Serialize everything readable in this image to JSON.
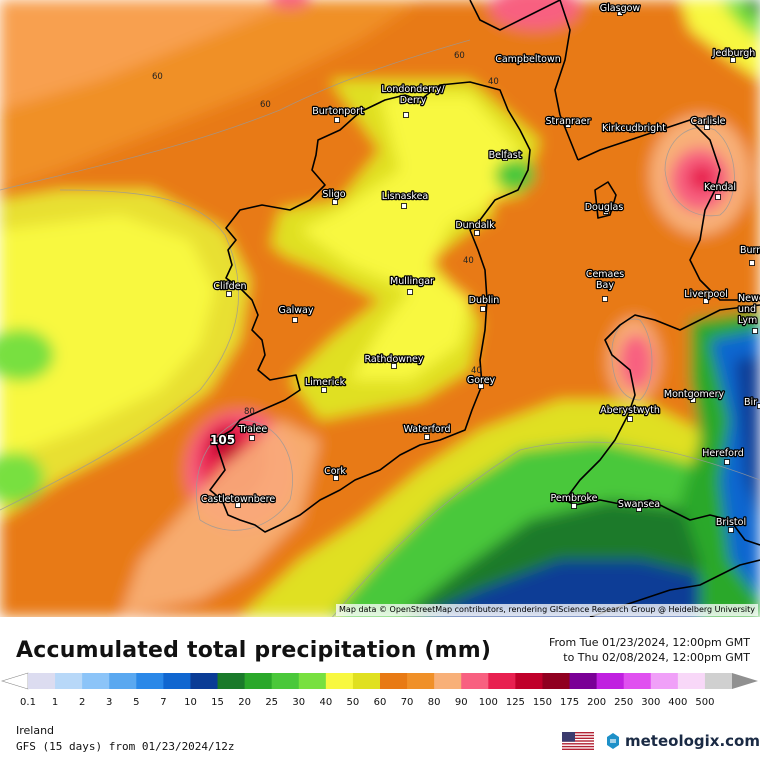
{
  "map": {
    "max_value_label": "105",
    "contour_labels": [
      "60",
      "60",
      "60",
      "40",
      "40",
      "40",
      "80"
    ],
    "cities": [
      {
        "name": "Glasgow"
      },
      {
        "name": "Jedburgh"
      },
      {
        "name": "Campbeltown"
      },
      {
        "name": "Burtonport"
      },
      {
        "name": "Londonderry/\nDerry"
      },
      {
        "name": "Stranraer"
      },
      {
        "name": "Kirkcudbright"
      },
      {
        "name": "Carlisle"
      },
      {
        "name": "Belfast"
      },
      {
        "name": "Kendal"
      },
      {
        "name": "Sligo"
      },
      {
        "name": "Lisnaskea"
      },
      {
        "name": "Douglas"
      },
      {
        "name": "Dundalk"
      },
      {
        "name": "Burn"
      },
      {
        "name": "Mullingar"
      },
      {
        "name": "Clifden"
      },
      {
        "name": "Dublin"
      },
      {
        "name": "Cemaes\nBay"
      },
      {
        "name": "Liverpool"
      },
      {
        "name": "Galway"
      },
      {
        "name": "Newca\nund\nLym"
      },
      {
        "name": "Rathdowney"
      },
      {
        "name": "Limerick"
      },
      {
        "name": "Gorey"
      },
      {
        "name": "Montgomery"
      },
      {
        "name": "Bir"
      },
      {
        "name": "Aberystwyth"
      },
      {
        "name": "Tralee"
      },
      {
        "name": "Waterford"
      },
      {
        "name": "Hereford"
      },
      {
        "name": "Cork"
      },
      {
        "name": "Castletownbere"
      },
      {
        "name": "Pembroke"
      },
      {
        "name": "Swansea"
      },
      {
        "name": "Bristol"
      }
    ],
    "attribution": "Map data © OpenStreetMap contributors, rendering GIScience Research Group @ Heidelberg University"
  },
  "header": {
    "title": "Accumulated total precipitation (mm)",
    "period_from": "From Tue 01/23/2024, 12:00pm GMT",
    "period_to": "to Thu 02/08/2024, 12:00pm GMT"
  },
  "legend": {
    "labels": [
      "0.1",
      "1",
      "2",
      "3",
      "5",
      "7",
      "10",
      "15",
      "20",
      "25",
      "30",
      "40",
      "50",
      "60",
      "70",
      "80",
      "90",
      "100",
      "125",
      "150",
      "175",
      "200",
      "250",
      "300",
      "400",
      "500"
    ],
    "colors": [
      "#dcdcf0",
      "#b8d8f8",
      "#8cc4f8",
      "#5aa8f0",
      "#2a88e8",
      "#1066d0",
      "#0a3c96",
      "#1a7a2a",
      "#2aa82a",
      "#4ac83a",
      "#78e040",
      "#f8f840",
      "#e0e020",
      "#e87a14",
      "#f09028",
      "#f8b078",
      "#f86080",
      "#e82050",
      "#c0002a",
      "#900020",
      "#7a0096",
      "#c020e0",
      "#e050f0",
      "#f0a0f8",
      "#f8d8f8",
      "#d0d0d0"
    ]
  },
  "footer": {
    "region": "Ireland",
    "model_run": "GFS (15 days) from 01/23/2024/12z",
    "brand": "meteologix.com"
  }
}
